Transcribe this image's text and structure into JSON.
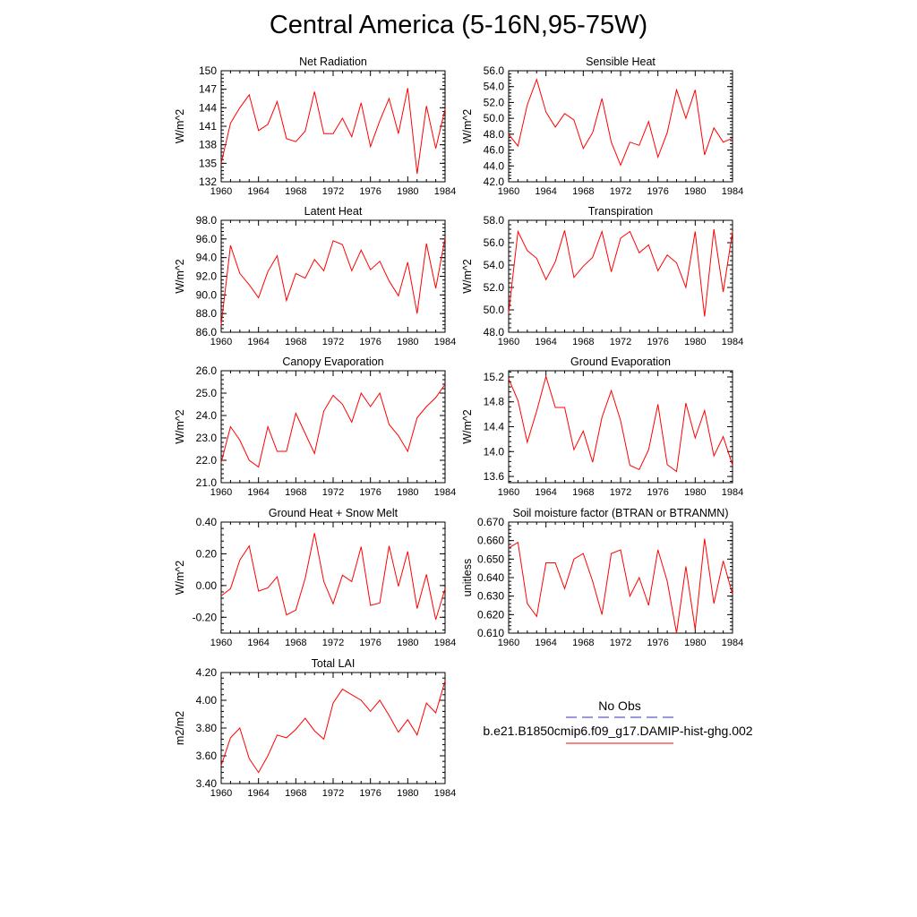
{
  "title": "Central America (5-16N,95-75W)",
  "legend": {
    "obs_label": "No Obs",
    "case_label": "b.e21.B1850cmip6.f09_g17.DAMIP-hist-ghg.002",
    "obs_color": "#3030c0",
    "case_color": "#ff0000"
  },
  "chart_data": [
    {
      "type": "line",
      "title": "Net Radiation",
      "ylabel": "W/m^2",
      "x": [
        1960,
        1961,
        1962,
        1963,
        1964,
        1965,
        1966,
        1967,
        1968,
        1969,
        1970,
        1971,
        1972,
        1973,
        1974,
        1975,
        1976,
        1977,
        1978,
        1979,
        1980,
        1981,
        1982,
        1983,
        1984
      ],
      "series": [
        {
          "values": [
            135.0,
            141.5,
            144.0,
            146.1,
            140.3,
            141.3,
            145.0,
            139.0,
            138.5,
            140.2,
            146.6,
            139.8,
            139.8,
            142.3,
            139.3,
            144.8,
            137.7,
            141.9,
            145.5,
            139.8,
            147.2,
            133.3,
            144.3,
            137.4,
            143.8
          ]
        }
      ],
      "ylim": [
        132,
        150
      ],
      "yticks": [
        "132",
        "135",
        "138",
        "141",
        "144",
        "147",
        "150"
      ],
      "xticks": [
        "1960",
        "1964",
        "1968",
        "1972",
        "1976",
        "1980",
        "1984"
      ]
    },
    {
      "type": "line",
      "title": "Sensible Heat",
      "ylabel": "W/m^2",
      "x": [
        1960,
        1961,
        1962,
        1963,
        1964,
        1965,
        1966,
        1967,
        1968,
        1969,
        1970,
        1971,
        1972,
        1973,
        1974,
        1975,
        1976,
        1977,
        1978,
        1979,
        1980,
        1981,
        1982,
        1983,
        1984
      ],
      "series": [
        {
          "values": [
            48.0,
            46.5,
            51.7,
            54.9,
            50.8,
            48.9,
            50.6,
            49.8,
            46.2,
            48.2,
            52.5,
            47.0,
            44.1,
            47.0,
            46.6,
            49.6,
            45.1,
            48.2,
            53.6,
            50.0,
            53.6,
            45.4,
            48.8,
            47.0,
            47.5
          ]
        }
      ],
      "ylim": [
        42,
        56
      ],
      "yticks": [
        "42.0",
        "44.0",
        "46.0",
        "48.0",
        "50.0",
        "52.0",
        "54.0",
        "56.0"
      ],
      "xticks": [
        "1960",
        "1964",
        "1968",
        "1972",
        "1976",
        "1980",
        "1984"
      ]
    },
    {
      "type": "line",
      "title": "Latent Heat",
      "ylabel": "W/m^2",
      "x": [
        1960,
        1961,
        1962,
        1963,
        1964,
        1965,
        1966,
        1967,
        1968,
        1969,
        1970,
        1971,
        1972,
        1973,
        1974,
        1975,
        1976,
        1977,
        1978,
        1979,
        1980,
        1981,
        1982,
        1983,
        1984
      ],
      "series": [
        {
          "values": [
            86.8,
            95.3,
            92.3,
            91.1,
            89.7,
            92.5,
            94.2,
            89.4,
            92.3,
            91.8,
            93.8,
            92.6,
            95.8,
            95.4,
            92.6,
            94.8,
            92.7,
            93.6,
            91.5,
            89.9,
            93.5,
            88.0,
            95.5,
            90.7,
            96.1
          ]
        }
      ],
      "ylim": [
        86,
        98
      ],
      "yticks": [
        "86.0",
        "88.0",
        "90.0",
        "92.0",
        "94.0",
        "96.0",
        "98.0"
      ],
      "xticks": [
        "1960",
        "1964",
        "1968",
        "1972",
        "1976",
        "1980",
        "1984"
      ]
    },
    {
      "type": "line",
      "title": "Transpiration",
      "ylabel": "W/m^2",
      "x": [
        1960,
        1961,
        1962,
        1963,
        1964,
        1965,
        1966,
        1967,
        1968,
        1969,
        1970,
        1971,
        1972,
        1973,
        1974,
        1975,
        1976,
        1977,
        1978,
        1979,
        1980,
        1981,
        1982,
        1983,
        1984
      ],
      "series": [
        {
          "values": [
            49.7,
            57.0,
            55.3,
            54.6,
            52.7,
            54.3,
            57.1,
            52.9,
            53.9,
            54.7,
            57.0,
            53.4,
            56.4,
            57.0,
            55.1,
            55.8,
            53.5,
            54.9,
            54.2,
            52.0,
            57.0,
            49.4,
            57.2,
            51.6,
            57.0
          ]
        }
      ],
      "ylim": [
        48,
        58
      ],
      "yticks": [
        "48.0",
        "50.0",
        "52.0",
        "54.0",
        "56.0",
        "58.0"
      ],
      "xticks": [
        "1960",
        "1964",
        "1968",
        "1972",
        "1976",
        "1980",
        "1984"
      ]
    },
    {
      "type": "line",
      "title": "Canopy Evaporation",
      "ylabel": "W/m^2",
      "x": [
        1960,
        1961,
        1962,
        1963,
        1964,
        1965,
        1966,
        1967,
        1968,
        1969,
        1970,
        1971,
        1972,
        1973,
        1974,
        1975,
        1976,
        1977,
        1978,
        1979,
        1980,
        1981,
        1982,
        1983,
        1984
      ],
      "series": [
        {
          "values": [
            21.9,
            23.5,
            22.9,
            22.0,
            21.7,
            23.5,
            22.4,
            22.4,
            24.1,
            23.2,
            22.3,
            24.2,
            24.9,
            24.5,
            23.7,
            25.0,
            24.4,
            25.0,
            23.6,
            23.1,
            22.4,
            23.9,
            24.4,
            24.8,
            25.4
          ]
        }
      ],
      "ylim": [
        21,
        26
      ],
      "yticks": [
        "21.0",
        "22.0",
        "23.0",
        "24.0",
        "25.0",
        "26.0"
      ],
      "xticks": [
        "1960",
        "1964",
        "1968",
        "1972",
        "1976",
        "1980",
        "1984"
      ]
    },
    {
      "type": "line",
      "title": "Ground Evaporation",
      "ylabel": "W/m^2",
      "x": [
        1960,
        1961,
        1962,
        1963,
        1964,
        1965,
        1966,
        1967,
        1968,
        1969,
        1970,
        1971,
        1972,
        1973,
        1974,
        1975,
        1976,
        1977,
        1978,
        1979,
        1980,
        1981,
        1982,
        1983,
        1984
      ],
      "series": [
        {
          "values": [
            15.17,
            14.82,
            14.15,
            14.65,
            15.21,
            14.71,
            14.71,
            14.03,
            14.33,
            13.83,
            14.55,
            14.98,
            14.5,
            13.78,
            13.71,
            14.03,
            14.76,
            13.79,
            13.68,
            14.78,
            14.22,
            14.66,
            13.93,
            14.24,
            13.78
          ]
        }
      ],
      "ylim": [
        13.5,
        15.3
      ],
      "yticks": [
        "13.6",
        "14.0",
        "14.4",
        "14.8",
        "15.2"
      ],
      "ytick_values": [
        13.6,
        14.0,
        14.4,
        14.8,
        15.2
      ],
      "xticks": [
        "1960",
        "1964",
        "1968",
        "1972",
        "1976",
        "1980",
        "1984"
      ]
    },
    {
      "type": "line",
      "title": "Ground Heat + Snow Melt",
      "ylabel": "W/m^2",
      "x": [
        1960,
        1961,
        1962,
        1963,
        1964,
        1965,
        1966,
        1967,
        1968,
        1969,
        1970,
        1971,
        1972,
        1973,
        1974,
        1975,
        1976,
        1977,
        1978,
        1979,
        1980,
        1981,
        1982,
        1983,
        1984
      ],
      "series": [
        {
          "values": [
            -0.065,
            -0.02,
            0.16,
            0.25,
            -0.035,
            -0.015,
            0.055,
            -0.185,
            -0.155,
            0.045,
            0.33,
            0.025,
            -0.115,
            0.065,
            0.025,
            0.245,
            -0.125,
            -0.11,
            0.25,
            -0.005,
            0.215,
            -0.145,
            0.07,
            -0.215,
            -0.02
          ]
        }
      ],
      "ylim": [
        -0.3,
        0.4
      ],
      "yticks": [
        "-0.20",
        "0.00",
        "0.20",
        "0.40"
      ],
      "ytick_values": [
        -0.2,
        0.0,
        0.2,
        0.4
      ],
      "xticks": [
        "1960",
        "1964",
        "1968",
        "1972",
        "1976",
        "1980",
        "1984"
      ]
    },
    {
      "type": "line",
      "title": "Soil moisture factor (BTRAN or BTRANMN)",
      "ylabel": "unitless",
      "x": [
        1960,
        1961,
        1962,
        1963,
        1964,
        1965,
        1966,
        1967,
        1968,
        1969,
        1970,
        1971,
        1972,
        1973,
        1974,
        1975,
        1976,
        1977,
        1978,
        1979,
        1980,
        1981,
        1982,
        1983,
        1984
      ],
      "series": [
        {
          "values": [
            0.656,
            0.659,
            0.626,
            0.619,
            0.648,
            0.648,
            0.634,
            0.65,
            0.653,
            0.638,
            0.62,
            0.653,
            0.655,
            0.63,
            0.64,
            0.625,
            0.655,
            0.638,
            0.61,
            0.646,
            0.612,
            0.661,
            0.626,
            0.649,
            0.631
          ]
        }
      ],
      "ylim": [
        0.61,
        0.67
      ],
      "yticks": [
        "0.610",
        "0.620",
        "0.630",
        "0.640",
        "0.650",
        "0.660",
        "0.670"
      ],
      "xticks": [
        "1960",
        "1964",
        "1968",
        "1972",
        "1976",
        "1980",
        "1984"
      ]
    },
    {
      "type": "line",
      "title": "Total LAI",
      "ylabel": "m2/m2",
      "x": [
        1960,
        1961,
        1962,
        1963,
        1964,
        1965,
        1966,
        1967,
        1968,
        1969,
        1970,
        1971,
        1972,
        1973,
        1974,
        1975,
        1976,
        1977,
        1978,
        1979,
        1980,
        1981,
        1982,
        1983,
        1984
      ],
      "series": [
        {
          "values": [
            3.53,
            3.73,
            3.8,
            3.58,
            3.48,
            3.6,
            3.75,
            3.73,
            3.79,
            3.87,
            3.78,
            3.72,
            3.98,
            4.08,
            4.04,
            4.0,
            3.92,
            4.0,
            3.89,
            3.77,
            3.86,
            3.75,
            3.98,
            3.91,
            4.14
          ]
        }
      ],
      "ylim": [
        3.4,
        4.2
      ],
      "yticks": [
        "3.40",
        "3.60",
        "3.80",
        "4.00",
        "4.20"
      ],
      "xticks": [
        "1960",
        "1964",
        "1968",
        "1972",
        "1976",
        "1980",
        "1984"
      ]
    }
  ]
}
